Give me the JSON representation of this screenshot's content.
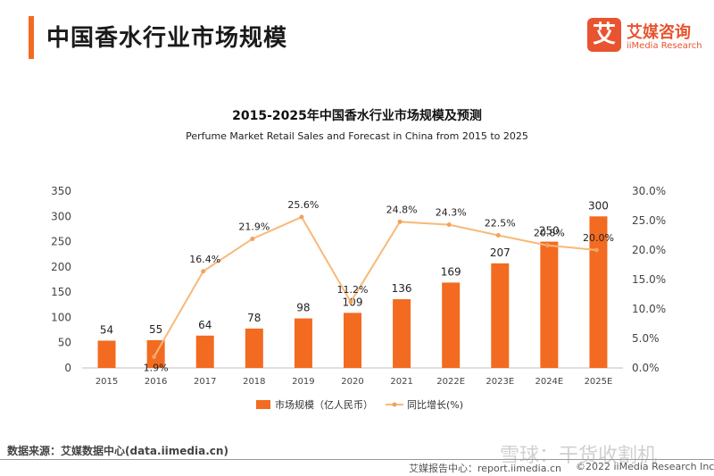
{
  "header": {
    "title": "中国香水行业市场规模"
  },
  "logo": {
    "mark": "艾",
    "name_cn": "艾媒咨询",
    "name_en": "iiMedia Research"
  },
  "chart_data": {
    "type": "bar",
    "title": "2015-2025年中国香水行业市场规模及预测",
    "subtitle": "Perfume Market Retail Sales and Forecast in China from 2015 to 2025",
    "categories": [
      "2015",
      "2016",
      "2017",
      "2018",
      "2019",
      "2020",
      "2021",
      "2022E",
      "2023E",
      "2024E",
      "2025E"
    ],
    "series": [
      {
        "name": "市场规模（亿人民币）",
        "type": "bar",
        "axis": "left",
        "values": [
          54,
          55,
          64,
          78,
          98,
          109,
          136,
          169,
          207,
          250,
          300
        ],
        "labels": [
          "54",
          "55",
          "64",
          "78",
          "98",
          "109",
          "136",
          "169",
          "207",
          "250",
          "300"
        ],
        "color": "#f26b21"
      },
      {
        "name": "同比增长(%)",
        "type": "line",
        "axis": "right",
        "values": [
          null,
          1.9,
          16.4,
          21.9,
          25.6,
          11.2,
          24.8,
          24.3,
          22.5,
          20.8,
          20.0
        ],
        "labels": [
          "",
          "1.9%",
          "16.4%",
          "21.9%",
          "25.6%",
          "11.2%",
          "24.8%",
          "24.3%",
          "22.5%",
          "20.8%",
          "20.0%"
        ],
        "color": "#f7b97a"
      }
    ],
    "y_left": {
      "ylim": [
        0,
        350
      ],
      "ticks": [
        "0",
        "50",
        "100",
        "150",
        "200",
        "250",
        "300",
        "350"
      ]
    },
    "y_right": {
      "ylim": [
        0,
        30
      ],
      "ticks": [
        "0.0%",
        "5.0%",
        "10.0%",
        "15.0%",
        "20.0%",
        "25.0%",
        "30.0%"
      ]
    },
    "grid": false,
    "legend_position": "bottom"
  },
  "footer": {
    "source": "数据来源：艾媒数据中心(data.iimedia.cn)",
    "report": "艾媒报告中心：report.iimedia.cn",
    "copyright": "©2022  iiMedia Research  Inc",
    "watermark": "雪球：干货收割机"
  }
}
